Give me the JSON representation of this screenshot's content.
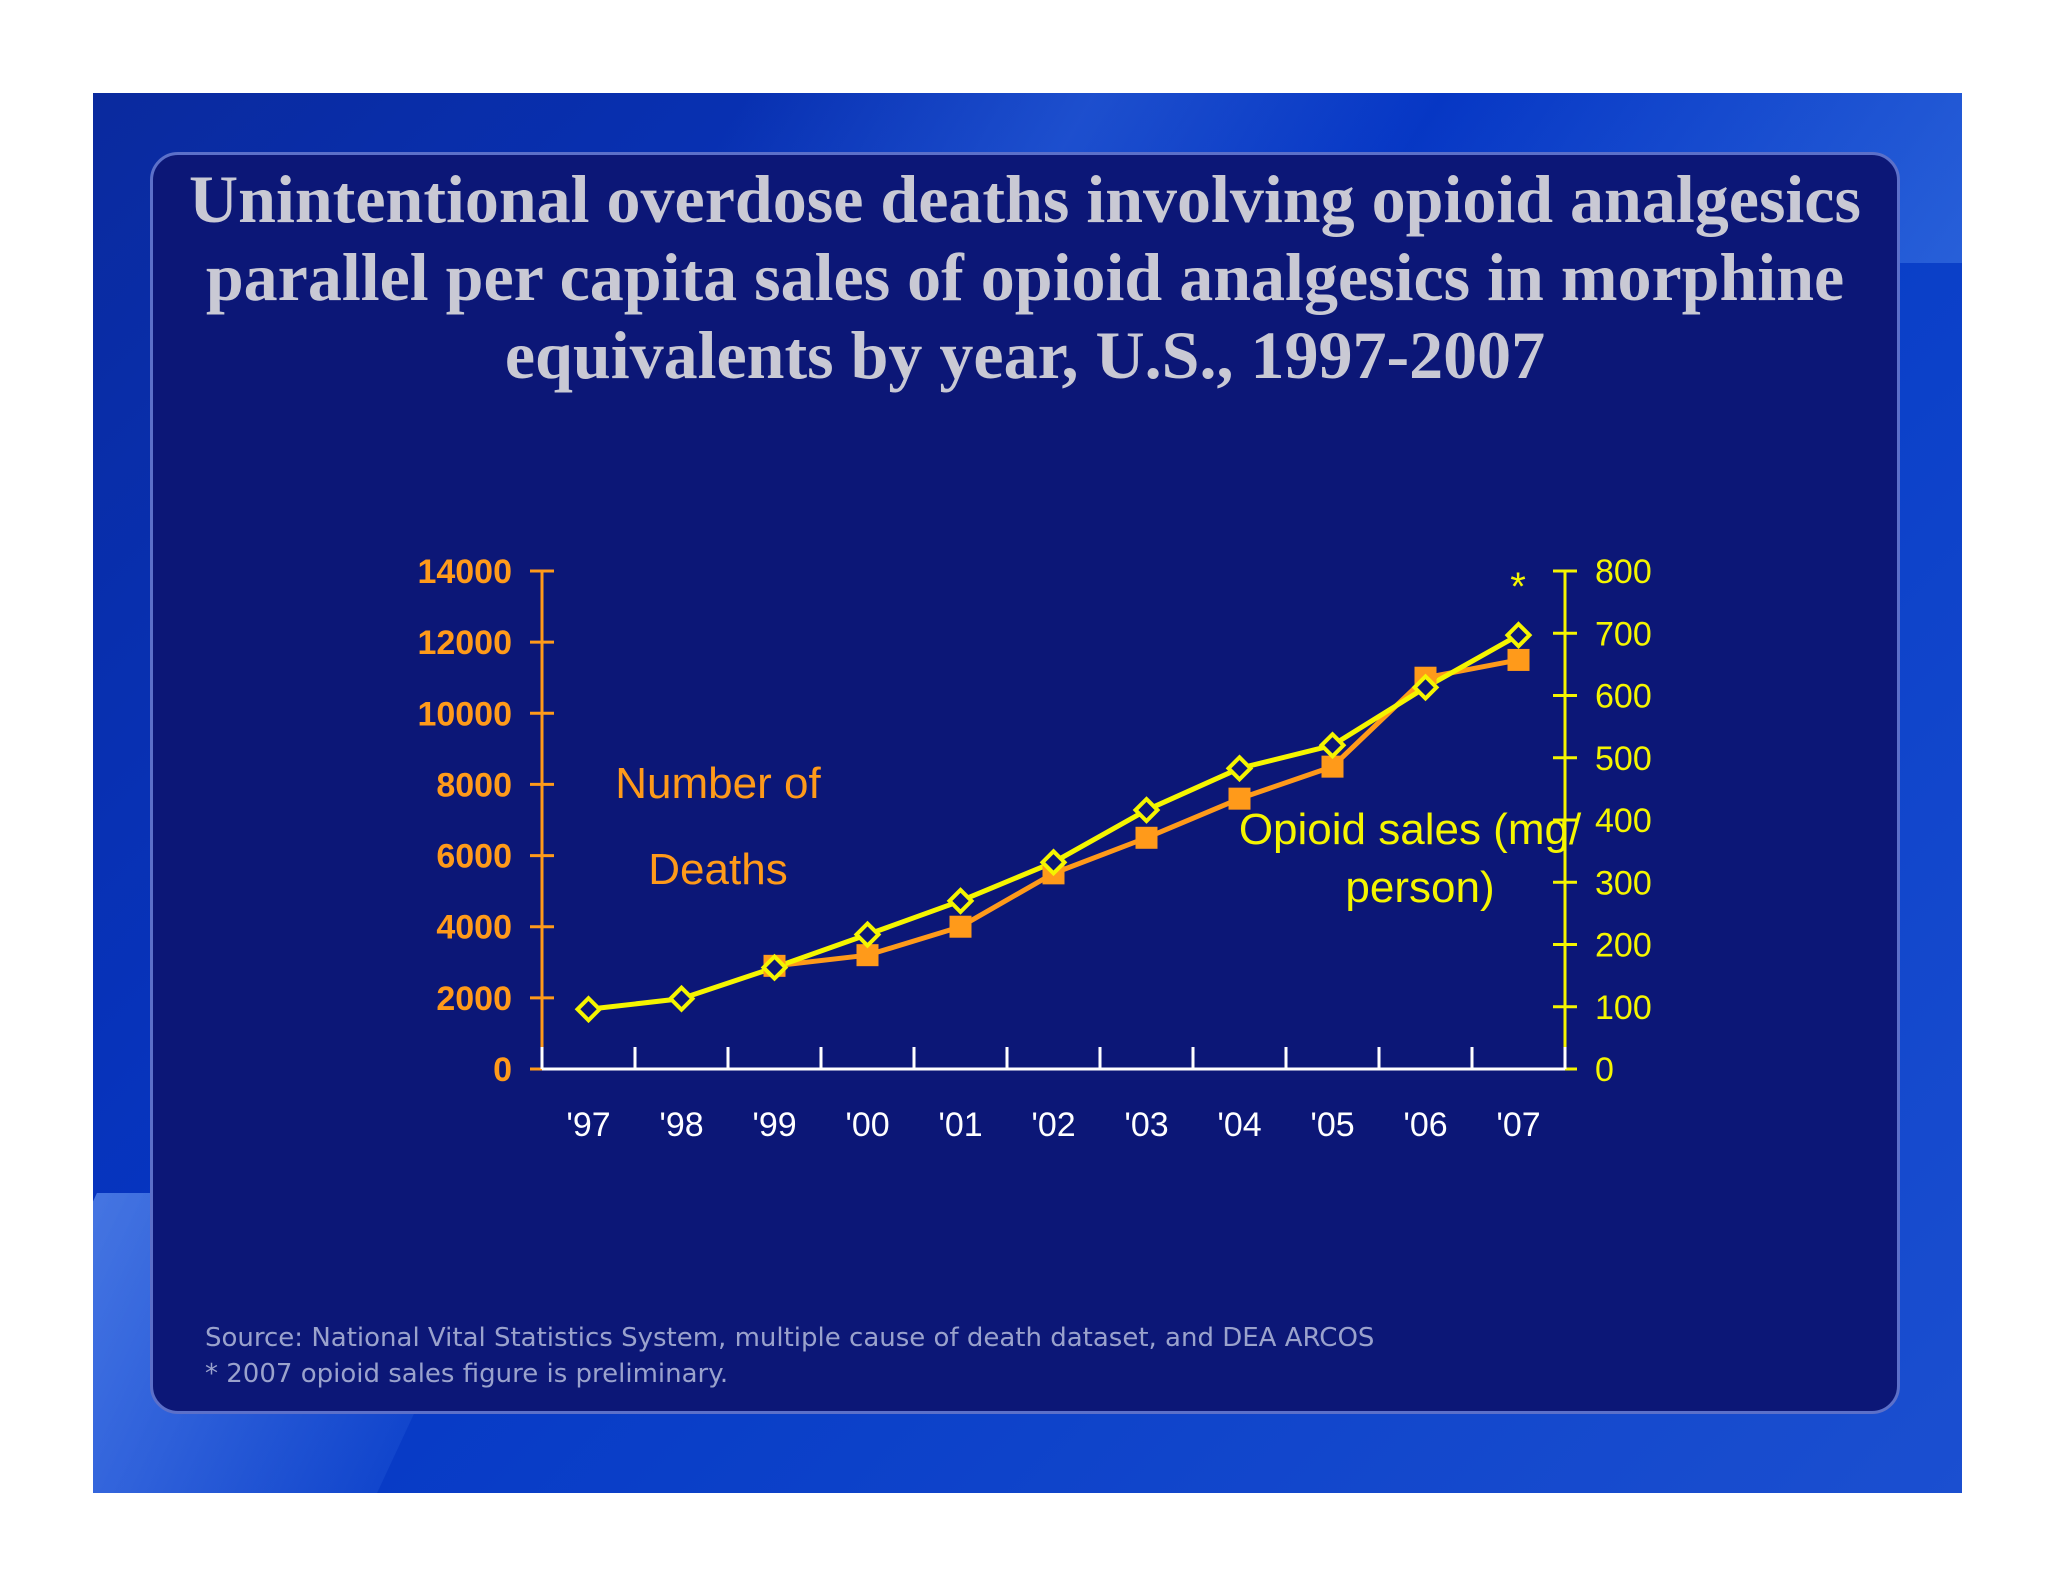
{
  "title": "Unintentional overdose deaths involving opioid analgesics parallel per capita sales of opioid analgesics in morphine equivalents by year, U.S., 1997-2007",
  "source_line1": "Source: National Vital Statistics System, multiple cause of death dataset, and DEA ARCOS",
  "source_line2": "* 2007 opioid sales figure is preliminary.",
  "colors": {
    "deaths": "#ff9a1a",
    "sales": "#f5f500",
    "left_axis": "#ff9a1a",
    "right_axis": "#f5f500",
    "background": "#0c1777",
    "title": "#c9c9d4"
  },
  "chart_data": {
    "type": "line",
    "categories": [
      "'97",
      "'98",
      "'99",
      "'00",
      "'01",
      "'02",
      "'03",
      "'04",
      "'05",
      "'06",
      "'07"
    ],
    "series": [
      {
        "name": "Number of Deaths",
        "axis": "left",
        "marker": "square",
        "values": [
          null,
          null,
          2900,
          3200,
          4000,
          5500,
          6500,
          7600,
          8500,
          11000,
          11500
        ]
      },
      {
        "name": "Opioid sales (mg/ person)",
        "axis": "right",
        "marker": "diamond",
        "values": [
          96,
          113,
          163,
          216,
          270,
          332,
          416,
          483,
          520,
          613,
          697
        ]
      }
    ],
    "y_left": {
      "ticks": [
        "0",
        "2000",
        "4000",
        "6000",
        "8000",
        "10000",
        "12000",
        "14000"
      ],
      "ylim": [
        0,
        14000
      ]
    },
    "y_right": {
      "ticks": [
        "0",
        "100",
        "200",
        "300",
        "400",
        "500",
        "600",
        "700",
        "800"
      ],
      "ylim": [
        0,
        800
      ]
    },
    "left_label_lines": [
      "Number of",
      "Deaths"
    ],
    "right_label_lines": [
      "Opioid sales (mg/",
      "person)"
    ],
    "annotation": "*",
    "grid": false
  }
}
